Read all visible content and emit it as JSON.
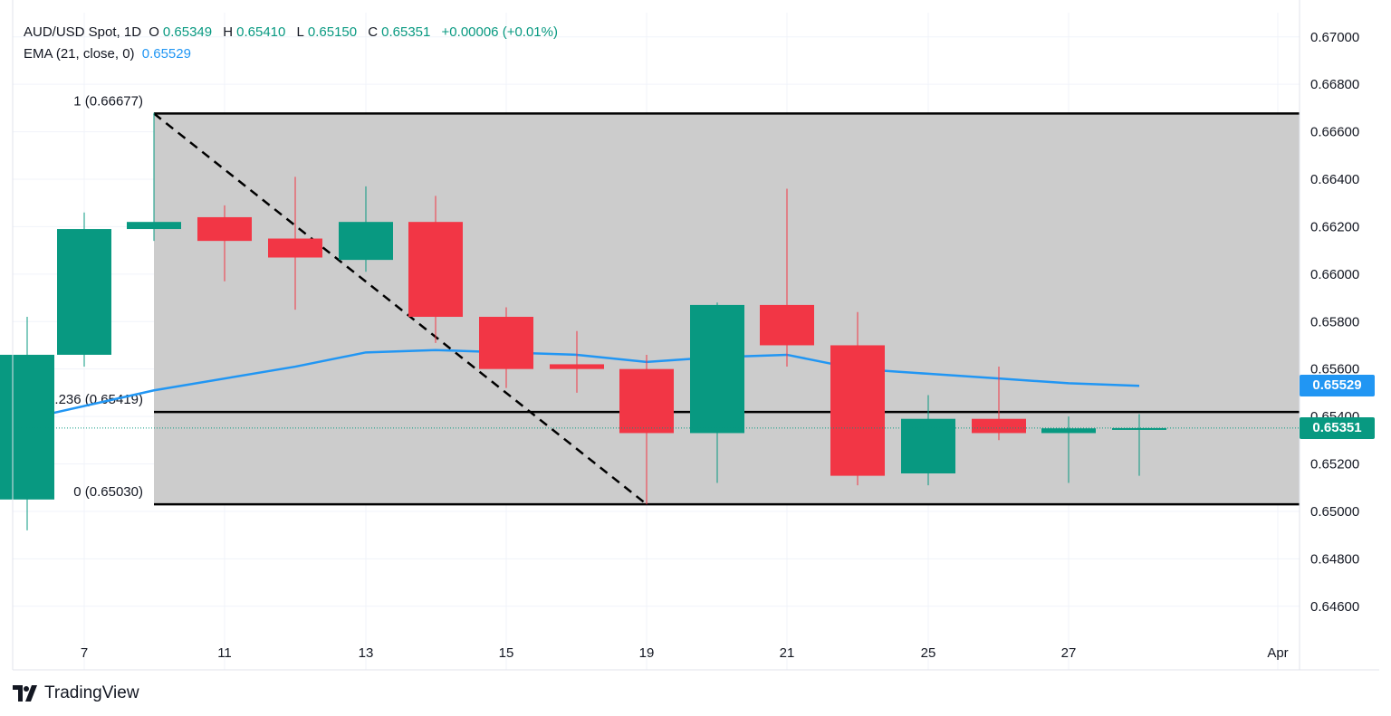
{
  "legend": {
    "symbol": "AUD/USD Spot, 1D",
    "o_label": "O",
    "o_value": "0.65349",
    "h_label": "H",
    "h_value": "0.65410",
    "l_label": "L",
    "l_value": "0.65150",
    "c_label": "C",
    "c_value": "0.65351",
    "change": "+0.00006 (+0.01%)",
    "ema_label": "EMA (21, close, 0)",
    "ema_value": "0.65529"
  },
  "price_tags": {
    "ema": "0.65529",
    "last": "0.65351"
  },
  "brand": {
    "name": "TradingView"
  },
  "colors": {
    "up": "#089981",
    "down": "#f23645",
    "ema": "#2196f3",
    "fib_zone": "#cccccc",
    "fib_line": "#000000",
    "grid": "#f0f3fa",
    "axis_text": "#131722"
  },
  "chart_data": {
    "type": "candlestick",
    "symbol": "AUD/USD",
    "timeframe": "1D",
    "ylim": [
      0.6443,
      0.6716
    ],
    "y_ticks": [
      "0.67000",
      "0.66800",
      "0.66600",
      "0.66400",
      "0.66200",
      "0.66000",
      "0.65800",
      "0.65600",
      "0.65400",
      "0.65200",
      "0.65000",
      "0.64800",
      "0.64600"
    ],
    "x_ticks": [
      {
        "label": "7",
        "day": 7
      },
      {
        "label": "11",
        "day": 11
      },
      {
        "label": "13",
        "day": 13
      },
      {
        "label": "15",
        "day": 15
      },
      {
        "label": "19",
        "day": 19
      },
      {
        "label": "21",
        "day": 21
      },
      {
        "label": "25",
        "day": 25
      },
      {
        "label": "27",
        "day": 27
      },
      {
        "label": "Apr",
        "day": 32
      }
    ],
    "candles": [
      {
        "day": 6,
        "open": 0.6505,
        "high": 0.6582,
        "low": 0.6492,
        "close": 0.6566
      },
      {
        "day": 7,
        "open": 0.6566,
        "high": 0.6626,
        "low": 0.6561,
        "close": 0.6619
      },
      {
        "day": 10,
        "open": 0.6619,
        "high": 0.6668,
        "low": 0.6614,
        "close": 0.6622
      },
      {
        "day": 11,
        "open": 0.6624,
        "high": 0.6629,
        "low": 0.6597,
        "close": 0.6614
      },
      {
        "day": 12,
        "open": 0.6615,
        "high": 0.6641,
        "low": 0.6585,
        "close": 0.6607
      },
      {
        "day": 13,
        "open": 0.6606,
        "high": 0.6637,
        "low": 0.6601,
        "close": 0.6622
      },
      {
        "day": 14,
        "open": 0.6622,
        "high": 0.6633,
        "low": 0.6571,
        "close": 0.6582
      },
      {
        "day": 15,
        "open": 0.6582,
        "high": 0.6586,
        "low": 0.6552,
        "close": 0.656
      },
      {
        "day": 18,
        "open": 0.6562,
        "high": 0.6576,
        "low": 0.655,
        "close": 0.656
      },
      {
        "day": 19,
        "open": 0.656,
        "high": 0.6566,
        "low": 0.6503,
        "close": 0.6533
      },
      {
        "day": 20,
        "open": 0.6533,
        "high": 0.6588,
        "low": 0.6512,
        "close": 0.6587
      },
      {
        "day": 21,
        "open": 0.6587,
        "high": 0.6636,
        "low": 0.6561,
        "close": 0.657
      },
      {
        "day": 22,
        "open": 0.657,
        "high": 0.6584,
        "low": 0.6511,
        "close": 0.6515
      },
      {
        "day": 25,
        "open": 0.6516,
        "high": 0.6549,
        "low": 0.6511,
        "close": 0.6539
      },
      {
        "day": 26,
        "open": 0.6539,
        "high": 0.6561,
        "low": 0.653,
        "close": 0.6533
      },
      {
        "day": 27,
        "open": 0.6533,
        "high": 0.654,
        "low": 0.6512,
        "close": 0.6535
      },
      {
        "day": 28,
        "open": 0.65349,
        "high": 0.6541,
        "low": 0.6515,
        "close": 0.65351
      }
    ],
    "ema": {
      "name": "EMA (21, close, 0)",
      "points": [
        {
          "day": 6,
          "value": 0.6539
        },
        {
          "day": 10,
          "value": 0.6551
        },
        {
          "day": 12,
          "value": 0.6561
        },
        {
          "day": 13,
          "value": 0.6567
        },
        {
          "day": 14,
          "value": 0.6568
        },
        {
          "day": 15,
          "value": 0.6567
        },
        {
          "day": 18,
          "value": 0.6566
        },
        {
          "day": 19,
          "value": 0.6563
        },
        {
          "day": 20,
          "value": 0.6565
        },
        {
          "day": 21,
          "value": 0.6566
        },
        {
          "day": 22,
          "value": 0.656
        },
        {
          "day": 25,
          "value": 0.6558
        },
        {
          "day": 26,
          "value": 0.6556
        },
        {
          "day": 27,
          "value": 0.6554
        },
        {
          "day": 28,
          "value": 0.65529
        }
      ]
    },
    "fibonacci": {
      "start": {
        "day": 10,
        "price": 0.66677
      },
      "end": {
        "day": 19,
        "price": 0.6503
      },
      "extend_to_day": 30.4,
      "levels": [
        {
          "ratio": 1,
          "price": 0.66677,
          "label": "1 (0.66677)"
        },
        {
          "ratio": 0.236,
          "price": 0.65419,
          "label": ".236 (0.65419)"
        },
        {
          "ratio": 0,
          "price": 0.6503,
          "label": "0 (0.65030)"
        }
      ]
    }
  }
}
